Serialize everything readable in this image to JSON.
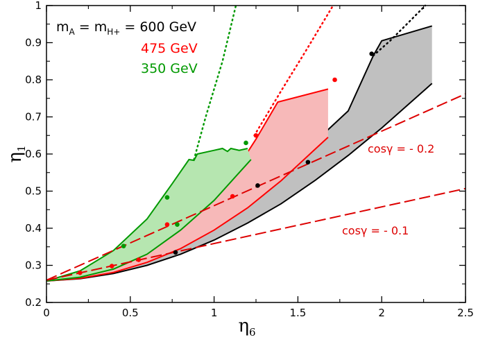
{
  "chart_data": {
    "type": "line",
    "xlabel": {
      "base": "η",
      "sub": "6"
    },
    "ylabel": {
      "base": "η",
      "sub": "1"
    },
    "xlim": [
      0,
      2.5
    ],
    "ylim": [
      0.2,
      1.0
    ],
    "x_ticks": [
      0,
      0.5,
      1,
      1.5,
      2,
      2.5
    ],
    "x_tick_labels": [
      "0",
      "0.5",
      "1",
      "1.5",
      "2",
      "2.5"
    ],
    "y_ticks": [
      0.2,
      0.3,
      0.4,
      0.5,
      0.6,
      0.7,
      0.8,
      0.9,
      1.0
    ],
    "y_tick_labels": [
      "0.2",
      "0.3",
      "0.4",
      "0.5",
      "0.6",
      "0.7",
      "0.8",
      "0.9",
      "1"
    ],
    "legend": {
      "placement": "top-left",
      "entries": [
        {
          "parts": [
            "m",
            "A",
            " = m",
            "H+",
            " = 600 GeV"
          ],
          "color": "#000000"
        },
        {
          "text": "475 GeV",
          "color": "#ff0000"
        },
        {
          "text": "350 GeV",
          "color": "#009900"
        }
      ]
    },
    "colors": {
      "mass_600": "#000000",
      "mass_475": "#ff0000",
      "mass_350": "#009900",
      "fill_600": "#c0c0c0",
      "fill_475": "#f7b9b9",
      "fill_350": "#b6e6b0",
      "cos_lines": "#dd0000"
    },
    "series": [
      {
        "name": "600 GeV",
        "color_key": "mass_600",
        "fill_key": "fill_600",
        "upper": [
          [
            0,
            0.258
          ],
          [
            0.2,
            0.272
          ],
          [
            0.4,
            0.298
          ],
          [
            0.6,
            0.332
          ],
          [
            0.8,
            0.376
          ],
          [
            1.0,
            0.43
          ],
          [
            1.2,
            0.49
          ],
          [
            1.4,
            0.556
          ],
          [
            1.6,
            0.632
          ],
          [
            1.8,
            0.716
          ],
          [
            1.95,
            0.865
          ],
          [
            2.0,
            0.905
          ],
          [
            2.3,
            0.945
          ]
        ],
        "lower": [
          [
            0,
            0.258
          ],
          [
            0.2,
            0.264
          ],
          [
            0.4,
            0.278
          ],
          [
            0.6,
            0.3
          ],
          [
            0.8,
            0.33
          ],
          [
            1.0,
            0.368
          ],
          [
            1.2,
            0.414
          ],
          [
            1.4,
            0.466
          ],
          [
            1.6,
            0.528
          ],
          [
            1.8,
            0.596
          ],
          [
            2.0,
            0.67
          ],
          [
            2.2,
            0.75
          ],
          [
            2.3,
            0.79
          ]
        ],
        "dotted": [
          [
            1.95,
            0.865
          ],
          [
            2.05,
            0.905
          ],
          [
            2.15,
            0.95
          ],
          [
            2.26,
            1.0
          ]
        ],
        "dots": [
          [
            0.77,
            0.335
          ],
          [
            1.26,
            0.515
          ],
          [
            1.56,
            0.578
          ],
          [
            1.94,
            0.87
          ]
        ]
      },
      {
        "name": "475 GeV",
        "color_key": "mass_475",
        "fill_key": "fill_475",
        "upper": [
          [
            0,
            0.258
          ],
          [
            0.2,
            0.274
          ],
          [
            0.4,
            0.304
          ],
          [
            0.6,
            0.35
          ],
          [
            0.8,
            0.415
          ],
          [
            1.0,
            0.498
          ],
          [
            1.15,
            0.57
          ],
          [
            1.25,
            0.64
          ],
          [
            1.38,
            0.74
          ],
          [
            1.68,
            0.775
          ]
        ],
        "lower": [
          [
            0,
            0.258
          ],
          [
            0.2,
            0.265
          ],
          [
            0.4,
            0.281
          ],
          [
            0.6,
            0.308
          ],
          [
            0.8,
            0.345
          ],
          [
            1.0,
            0.395
          ],
          [
            1.2,
            0.455
          ],
          [
            1.4,
            0.528
          ],
          [
            1.6,
            0.612
          ],
          [
            1.68,
            0.645
          ]
        ],
        "dotted": [
          [
            1.24,
            0.65
          ],
          [
            1.4,
            0.77
          ],
          [
            1.55,
            0.88
          ],
          [
            1.71,
            1.0
          ]
        ],
        "dots": [
          [
            0.2,
            0.28
          ],
          [
            0.39,
            0.298
          ],
          [
            0.55,
            0.315
          ],
          [
            0.72,
            0.41
          ],
          [
            1.11,
            0.486
          ],
          [
            1.25,
            0.65
          ],
          [
            1.72,
            0.8
          ]
        ]
      },
      {
        "name": "350 GeV",
        "color_key": "mass_350",
        "fill_key": "fill_350",
        "upper": [
          [
            0,
            0.258
          ],
          [
            0.2,
            0.285
          ],
          [
            0.4,
            0.34
          ],
          [
            0.6,
            0.425
          ],
          [
            0.75,
            0.52
          ],
          [
            0.85,
            0.585
          ],
          [
            0.88,
            0.583
          ],
          [
            0.9,
            0.6
          ],
          [
            1.0,
            0.61
          ],
          [
            1.05,
            0.615
          ],
          [
            1.08,
            0.607
          ],
          [
            1.1,
            0.615
          ],
          [
            1.15,
            0.61
          ],
          [
            1.2,
            0.615
          ]
        ],
        "lower": [
          [
            0,
            0.258
          ],
          [
            0.2,
            0.268
          ],
          [
            0.4,
            0.29
          ],
          [
            0.6,
            0.33
          ],
          [
            0.8,
            0.395
          ],
          [
            1.0,
            0.475
          ],
          [
            1.2,
            0.575
          ],
          [
            1.22,
            0.585
          ]
        ],
        "dotted": [
          [
            0.88,
            0.585
          ],
          [
            0.95,
            0.7
          ],
          [
            1.05,
            0.85
          ],
          [
            1.13,
            1.0
          ]
        ],
        "dots": [
          [
            0.46,
            0.352
          ],
          [
            0.72,
            0.483
          ],
          [
            0.78,
            0.41
          ],
          [
            1.19,
            0.63
          ]
        ]
      }
    ],
    "cos_lines": [
      {
        "label": "cosγ = - 0.2",
        "points": [
          [
            0,
            0.26
          ],
          [
            2.5,
            0.762
          ]
        ]
      },
      {
        "label": "cosγ = - 0.1",
        "points": [
          [
            0,
            0.26
          ],
          [
            2.5,
            0.507
          ]
        ]
      }
    ]
  }
}
